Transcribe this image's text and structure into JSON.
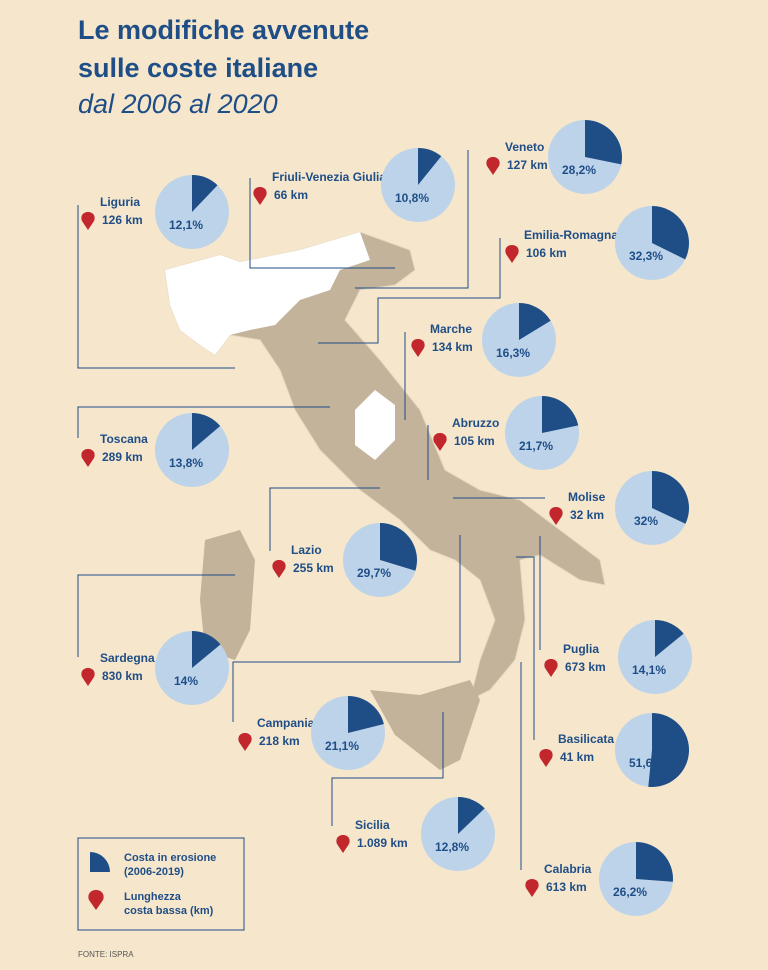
{
  "header": {
    "title_line_1": "Le modifiche avvenute",
    "title_line_2": "sulle coste italiane",
    "subtitle": "dal 2006 al 2020"
  },
  "regions": [
    {
      "name": "Liguria",
      "length": "126 km",
      "erosion": 12.1,
      "erosion_label": "12,1%"
    },
    {
      "name": "Friuli-Venezia Giulia",
      "length": "66 km",
      "erosion": 10.8,
      "erosion_label": "10,8%"
    },
    {
      "name": "Veneto",
      "length": "127 km",
      "erosion": 28.2,
      "erosion_label": "28,2%"
    },
    {
      "name": "Emilia-Romagna",
      "length": "106 km",
      "erosion": 32.3,
      "erosion_label": "32,3%"
    },
    {
      "name": "Marche",
      "length": "134 km",
      "erosion": 16.3,
      "erosion_label": "16,3%"
    },
    {
      "name": "Toscana",
      "length": "289 km",
      "erosion": 13.8,
      "erosion_label": "13,8%"
    },
    {
      "name": "Abruzzo",
      "length": "105 km",
      "erosion": 21.7,
      "erosion_label": "21,7%"
    },
    {
      "name": "Molise",
      "length": "32 km",
      "erosion": 32,
      "erosion_label": "32%"
    },
    {
      "name": "Lazio",
      "length": "255 km",
      "erosion": 29.7,
      "erosion_label": "29,7%"
    },
    {
      "name": "Sardegna",
      "length": "830 km",
      "erosion": 14,
      "erosion_label": "14%"
    },
    {
      "name": "Puglia",
      "length": "673 km",
      "erosion": 14.1,
      "erosion_label": "14,1%"
    },
    {
      "name": "Campania",
      "length": "218 km",
      "erosion": 21.1,
      "erosion_label": "21,1%"
    },
    {
      "name": "Basilicata",
      "length": "41 km",
      "erosion": 51.6,
      "erosion_label": "51,6%"
    },
    {
      "name": "Sicilia",
      "length": "1.089 km",
      "erosion": 12.8,
      "erosion_label": "12,8%"
    },
    {
      "name": "Calabria",
      "length": "613 km",
      "erosion": 26.2,
      "erosion_label": "26,2%"
    }
  ],
  "legend": {
    "erosion_line_1": "Costa in erosione",
    "erosion_line_2": "(2006-2019)",
    "length_line_1": "Lunghezza",
    "length_line_2": "costa bassa (km)"
  },
  "source": "FONTE: ISPRA"
}
